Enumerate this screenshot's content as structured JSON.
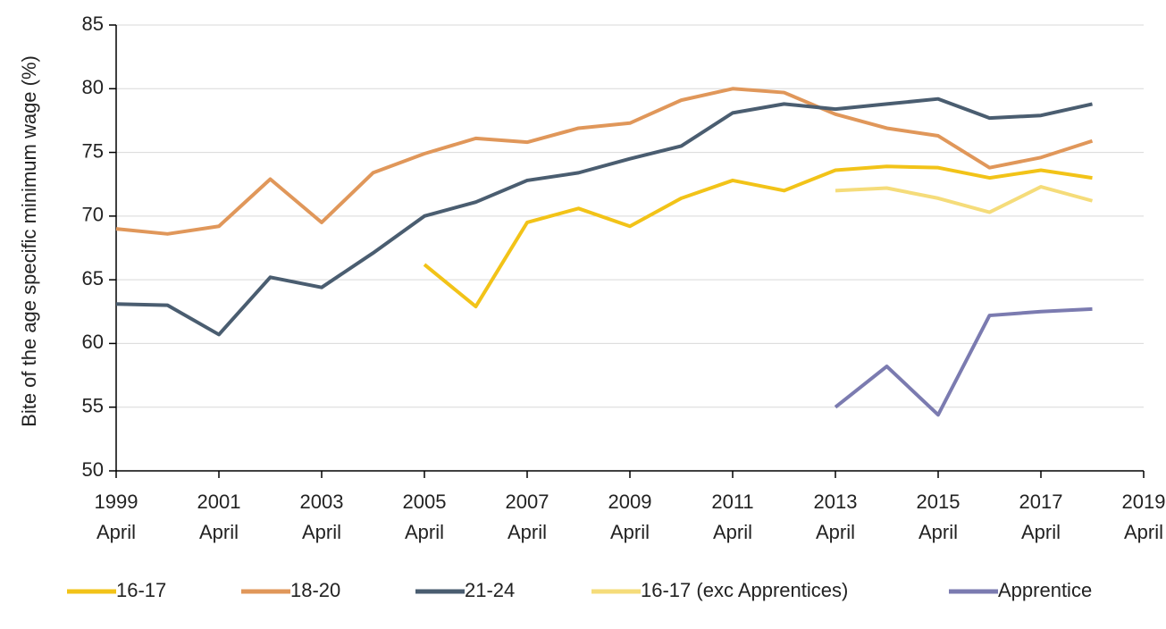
{
  "chart_data": {
    "type": "line",
    "y_label": "Bite of the age specific minimum wage (%)",
    "x": [
      1999,
      2000,
      2001,
      2002,
      2003,
      2004,
      2005,
      2006,
      2007,
      2008,
      2009,
      2010,
      2011,
      2012,
      2013,
      2014,
      2015,
      2016,
      2017,
      2018
    ],
    "xlim": [
      1999,
      2019
    ],
    "xticks": [
      {
        "value": 1999,
        "label": "1999\nApril"
      },
      {
        "value": 2001,
        "label": "2001\nApril"
      },
      {
        "value": 2003,
        "label": "2003\nApril"
      },
      {
        "value": 2005,
        "label": "2005\nApril"
      },
      {
        "value": 2007,
        "label": "2007\nApril"
      },
      {
        "value": 2009,
        "label": "2009\nApril"
      },
      {
        "value": 2011,
        "label": "2011\nApril"
      },
      {
        "value": 2013,
        "label": "2013\nApril"
      },
      {
        "value": 2015,
        "label": "2015\nApril"
      },
      {
        "value": 2017,
        "label": "2017\nApril"
      },
      {
        "value": 2019,
        "label": "2019\nApril"
      }
    ],
    "ylim": [
      50,
      85
    ],
    "yticks": [
      50,
      55,
      60,
      65,
      70,
      75,
      80,
      85
    ],
    "grid": true,
    "legend": "bottom",
    "series": [
      {
        "name": "16-17",
        "color": "#f2c318",
        "values": [
          null,
          null,
          null,
          null,
          null,
          null,
          66.2,
          62.9,
          69.5,
          70.6,
          69.2,
          71.4,
          72.8,
          72.0,
          73.6,
          73.9,
          73.8,
          73.0,
          73.6,
          73.0
        ]
      },
      {
        "name": "18-20",
        "color": "#e0975a",
        "values": [
          69.0,
          68.6,
          69.2,
          72.9,
          69.5,
          73.4,
          74.9,
          76.1,
          75.8,
          76.9,
          77.3,
          79.1,
          80.0,
          79.7,
          78.0,
          76.9,
          76.3,
          73.8,
          74.6,
          75.9
        ]
      },
      {
        "name": "21-24",
        "color": "#4a5d70",
        "values": [
          63.1,
          63.0,
          60.7,
          65.2,
          64.4,
          67.1,
          70.0,
          71.1,
          72.8,
          73.4,
          74.5,
          75.5,
          78.1,
          78.8,
          78.4,
          78.8,
          79.2,
          77.7,
          77.9,
          78.8
        ]
      },
      {
        "name": "16-17 (exc Apprentices)",
        "color": "#f5dc7a",
        "values": [
          null,
          null,
          null,
          null,
          null,
          null,
          null,
          null,
          null,
          null,
          null,
          null,
          null,
          null,
          72.0,
          72.2,
          71.4,
          70.3,
          72.3,
          71.2
        ]
      },
      {
        "name": "Apprentice",
        "color": "#7b7bb0",
        "values": [
          null,
          null,
          null,
          null,
          null,
          null,
          null,
          null,
          null,
          null,
          null,
          null,
          null,
          null,
          55.0,
          58.2,
          54.4,
          62.2,
          62.5,
          62.7
        ]
      }
    ]
  }
}
